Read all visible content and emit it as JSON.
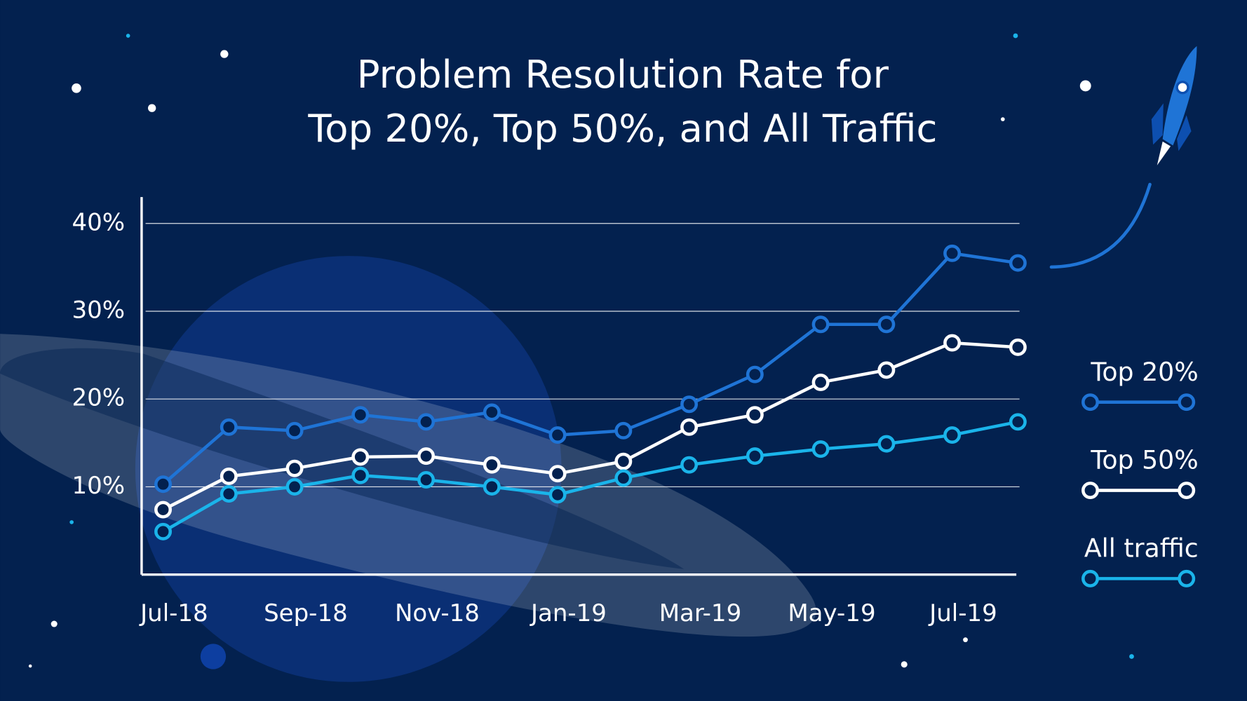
{
  "chart_data": {
    "type": "line",
    "title": [
      "Problem Resolution Rate for",
      "Top 20%, Top 50%, and All Traffic"
    ],
    "categories": [
      "Jul-18",
      null,
      "Sep-18",
      null,
      "Nov-18",
      null,
      "Jan-19",
      null,
      "Mar-19",
      null,
      "May-19",
      null,
      "Jul-19",
      null
    ],
    "series": [
      {
        "name": "Top 20%",
        "color": "#1f74d6",
        "values": [
          10.3,
          16.8,
          16.4,
          18.2,
          17.4,
          18.5,
          15.9,
          16.4,
          19.4,
          22.8,
          28.5,
          28.5,
          36.6,
          35.5
        ]
      },
      {
        "name": "Top 50%",
        "color": "#ffffff",
        "values": [
          7.4,
          11.2,
          12.1,
          13.4,
          13.5,
          12.5,
          11.5,
          12.9,
          16.8,
          18.2,
          21.9,
          23.3,
          26.4,
          25.9
        ]
      },
      {
        "name": "All traffic",
        "color": "#1ab4ea",
        "values": [
          4.9,
          9.2,
          10.0,
          11.3,
          10.8,
          10.0,
          9.1,
          11.0,
          12.5,
          13.5,
          14.3,
          14.9,
          15.9,
          17.4
        ]
      }
    ],
    "ylim": [
      0,
      43
    ],
    "yticks": [
      {
        "value": 10,
        "label": "10%"
      },
      {
        "value": 20,
        "label": "20%"
      },
      {
        "value": 30,
        "label": "30%"
      },
      {
        "value": 40,
        "label": "40%"
      }
    ],
    "grid": true,
    "legend": "right"
  }
}
